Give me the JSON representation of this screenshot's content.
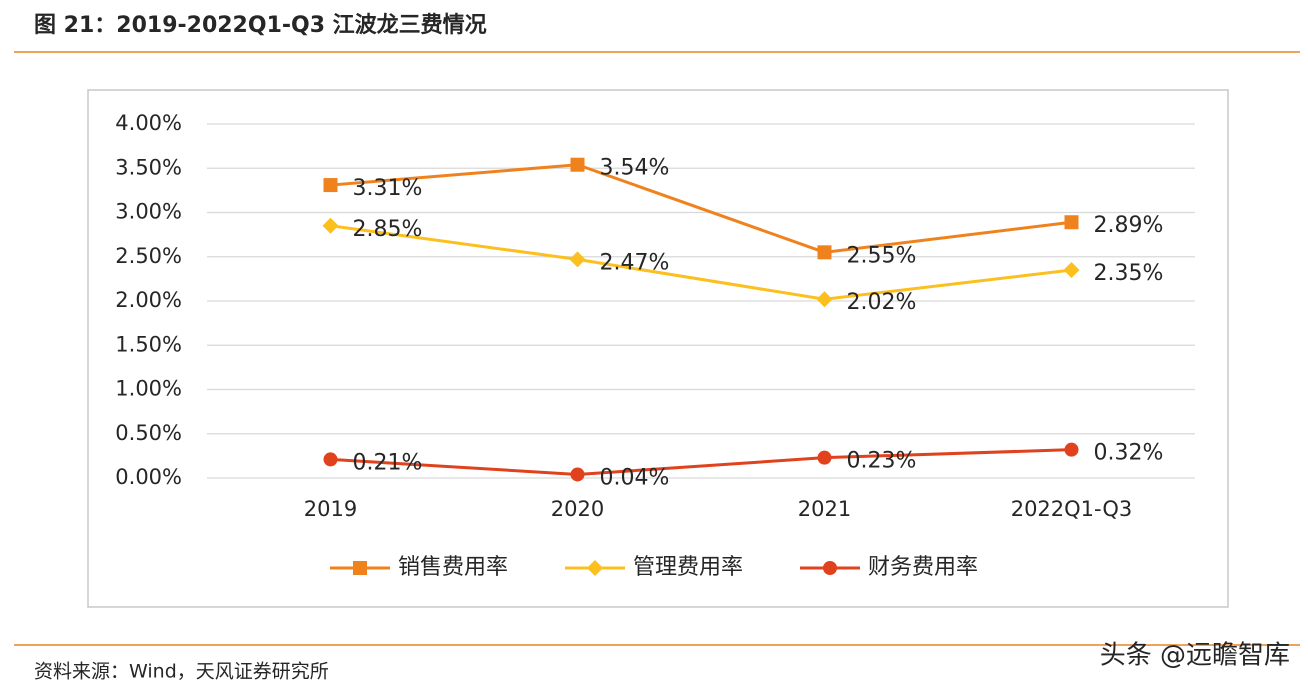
{
  "header": {
    "title": "图 21：2019-2022Q1-Q3 江波龙三费情况"
  },
  "chart_data": {
    "type": "line",
    "categories": [
      "2019",
      "2020",
      "2021",
      "2022Q1-Q3"
    ],
    "series": [
      {
        "name": "销售费用率",
        "color": "#f0821e",
        "marker": "square",
        "values": [
          3.31,
          3.54,
          2.55,
          2.89
        ],
        "value_labels": [
          "3.31%",
          "3.54%",
          "2.55%",
          "2.89%"
        ]
      },
      {
        "name": "管理费用率",
        "color": "#fbbf1e",
        "marker": "diamond",
        "values": [
          2.85,
          2.47,
          2.02,
          2.35
        ],
        "value_labels": [
          "2.85%",
          "2.47%",
          "2.02%",
          "2.35%"
        ]
      },
      {
        "name": "财务费用率",
        "color": "#e0421e",
        "marker": "circle",
        "values": [
          0.21,
          0.04,
          0.23,
          0.32
        ],
        "value_labels": [
          "0.21%",
          "0.04%",
          "0.23%",
          "0.32%"
        ]
      }
    ],
    "ylim": [
      0,
      4
    ],
    "yticks": [
      {
        "value": 0,
        "label": "0.00%"
      },
      {
        "value": 0.5,
        "label": "0.50%"
      },
      {
        "value": 1,
        "label": "1.00%"
      },
      {
        "value": 1.5,
        "label": "1.50%"
      },
      {
        "value": 2,
        "label": "2.00%"
      },
      {
        "value": 2.5,
        "label": "2.50%"
      },
      {
        "value": 3,
        "label": "3.00%"
      },
      {
        "value": 3.5,
        "label": "3.50%"
      },
      {
        "value": 4,
        "label": "4.00%"
      }
    ],
    "grid": true,
    "legend": "bottom"
  },
  "footer": {
    "source": "资料来源：Wind，天风证券研究所",
    "watermark": "头条 @远瞻智库"
  }
}
